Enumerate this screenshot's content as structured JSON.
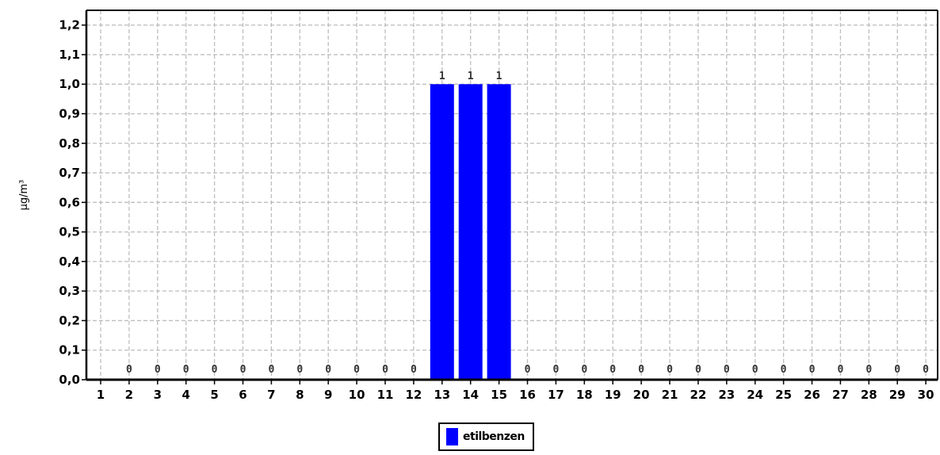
{
  "chart_data": {
    "type": "bar",
    "title": "",
    "xlabel": "",
    "ylabel": "µg/m³",
    "ylim": [
      0,
      1.25
    ],
    "yticks": [
      "0,0",
      "0,1",
      "0,2",
      "0,3",
      "0,4",
      "0,5",
      "0,6",
      "0,7",
      "0,8",
      "0,9",
      "1,0",
      "1,1",
      "1,2"
    ],
    "categories": [
      "1",
      "2",
      "3",
      "4",
      "5",
      "6",
      "7",
      "8",
      "9",
      "10",
      "11",
      "12",
      "13",
      "14",
      "15",
      "16",
      "17",
      "18",
      "19",
      "20",
      "21",
      "22",
      "23",
      "24",
      "25",
      "26",
      "27",
      "28",
      "29",
      "30"
    ],
    "series": [
      {
        "name": "etilbenzen",
        "color": "#0000ff",
        "values": [
          null,
          0,
          0,
          0,
          0,
          0,
          0,
          0,
          0,
          0,
          0,
          0,
          1,
          1,
          1,
          0,
          0,
          0,
          0,
          0,
          0,
          0,
          0,
          0,
          0,
          0,
          0,
          0,
          0,
          0
        ],
        "labels": [
          "",
          "0",
          "0",
          "0",
          "0",
          "0",
          "0",
          "0",
          "0",
          "0",
          "0",
          "0",
          "1",
          "1",
          "1",
          "0",
          "0",
          "0",
          "0",
          "0",
          "0",
          "0",
          "0",
          "0",
          "0",
          "0",
          "0",
          "0",
          "0",
          "0"
        ]
      }
    ],
    "grid": true,
    "legend_position": "bottom-center"
  }
}
